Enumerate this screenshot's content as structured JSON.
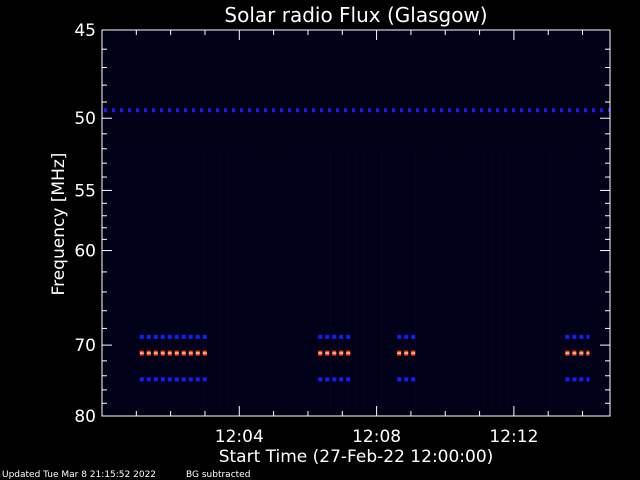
{
  "chart_data": {
    "type": "heatmap",
    "title": "Solar radio Flux (Glasgow)",
    "xlabel": "Start Time (27-Feb-22 12:00:00)",
    "ylabel": "Frequency [MHz]",
    "x_unit": "minutes after 12:00",
    "xlim": [
      0.0,
      14.8
    ],
    "ylim": [
      45,
      80
    ],
    "y_scale": "reciprocal",
    "x_ticks": [
      {
        "value": 4,
        "label": "12:04"
      },
      {
        "value": 8,
        "label": "12:08"
      },
      {
        "value": 12,
        "label": "12:12"
      }
    ],
    "y_ticks": [
      {
        "value": 45,
        "label": "45"
      },
      {
        "value": 50,
        "label": "50"
      },
      {
        "value": 55,
        "label": "55"
      },
      {
        "value": 60,
        "label": "60"
      },
      {
        "value": 70,
        "label": "70"
      },
      {
        "value": 80,
        "label": "80"
      }
    ],
    "colors": {
      "background": "#000000",
      "plot_bg": "#000016",
      "weak": "#1a1aff",
      "strong": "#ff3a1a",
      "core": "#ffd0a0"
    },
    "bursts": [
      {
        "t_start": 1.1,
        "t_end": 3.1
      },
      {
        "t_start": 6.3,
        "t_end": 7.3
      },
      {
        "t_start": 8.6,
        "t_end": 9.2
      },
      {
        "t_start": 13.5,
        "t_end": 14.2
      }
    ],
    "bands": [
      {
        "freq": 69.0,
        "intensity": "weak"
      },
      {
        "freq": 71.0,
        "intensity": "strong"
      },
      {
        "freq": 74.5,
        "intensity": "weak"
      }
    ],
    "interference_line_freq": 49.5
  },
  "footer": {
    "updated": "Updated Tue Mar  8 21:15:52 2022",
    "note": "BG subtracted"
  }
}
